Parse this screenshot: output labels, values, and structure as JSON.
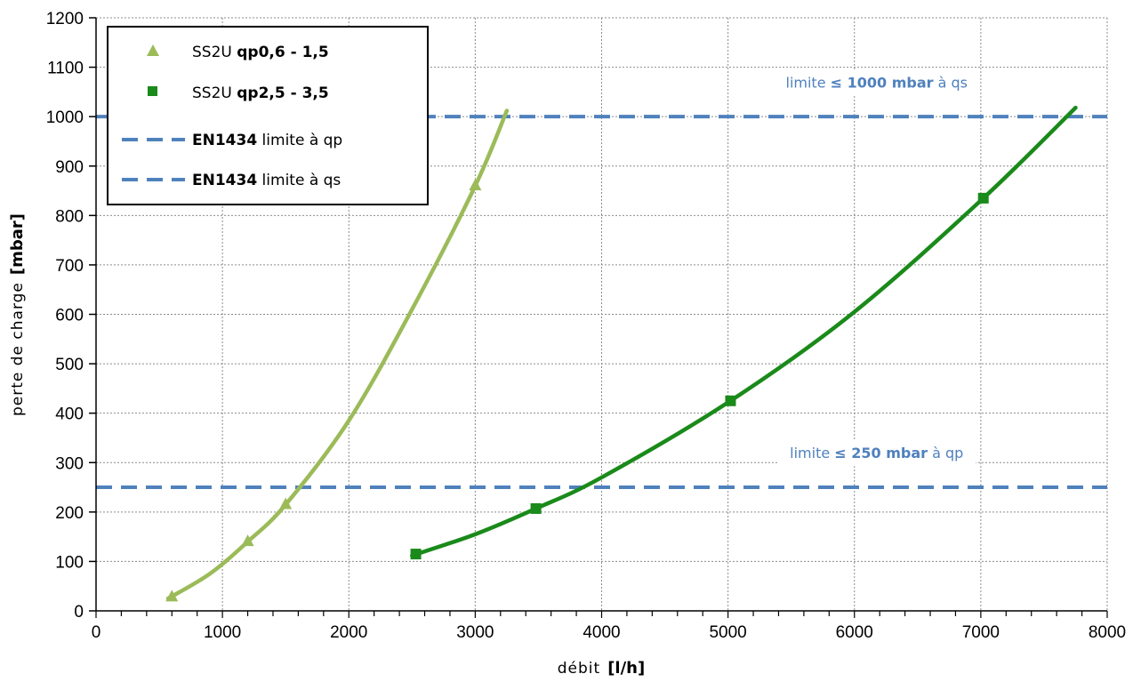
{
  "chart_data": {
    "type": "line",
    "title": "",
    "xlabel": "débit",
    "xlabel_unit": "[l/h]",
    "ylabel": "perte de charge",
    "ylabel_unit": "[mbar]",
    "xlim": [
      0,
      8000
    ],
    "ylim": [
      0,
      1200
    ],
    "x_ticks": [
      0,
      1000,
      2000,
      3000,
      4000,
      5000,
      6000,
      7000,
      8000
    ],
    "y_ticks": [
      0,
      100,
      200,
      300,
      400,
      500,
      600,
      700,
      800,
      900,
      1000,
      1100,
      1200
    ],
    "grid": true,
    "legend_position": "top-left",
    "series": [
      {
        "name_prefix": "SS2U ",
        "name_bold": "qp0,6 - 1,5",
        "color": "#9bbb59",
        "marker": "triangle",
        "markers": [
          {
            "x": 600,
            "y": 28
          },
          {
            "x": 1200,
            "y": 140
          },
          {
            "x": 1500,
            "y": 215
          },
          {
            "x": 3000,
            "y": 860
          }
        ],
        "curve": [
          {
            "x": 570,
            "y": 25
          },
          {
            "x": 900,
            "y": 75
          },
          {
            "x": 1200,
            "y": 140
          },
          {
            "x": 1500,
            "y": 215
          },
          {
            "x": 2000,
            "y": 385
          },
          {
            "x": 2500,
            "y": 610
          },
          {
            "x": 3000,
            "y": 860
          },
          {
            "x": 3250,
            "y": 1012
          }
        ]
      },
      {
        "name_prefix": "SS2U ",
        "name_bold": "qp2,5 - 3,5",
        "color": "#1a8a1a",
        "marker": "square",
        "markers": [
          {
            "x": 2530,
            "y": 115
          },
          {
            "x": 3480,
            "y": 207
          },
          {
            "x": 5020,
            "y": 425
          },
          {
            "x": 7020,
            "y": 835
          }
        ],
        "curve": [
          {
            "x": 2500,
            "y": 112
          },
          {
            "x": 3000,
            "y": 155
          },
          {
            "x": 3480,
            "y": 207
          },
          {
            "x": 4000,
            "y": 270
          },
          {
            "x": 5020,
            "y": 425
          },
          {
            "x": 6000,
            "y": 605
          },
          {
            "x": 7020,
            "y": 835
          },
          {
            "x": 7750,
            "y": 1018
          }
        ]
      }
    ],
    "reference_lines": [
      {
        "name_bold": "EN1434",
        "name_rest": " limite à qp",
        "y": 250,
        "color": "#4f81bd",
        "style": "dashed"
      },
      {
        "name_bold": "EN1434",
        "name_rest": " limite à qs",
        "y": 1000,
        "color": "#4f81bd",
        "style": "dashed"
      }
    ],
    "annotations": [
      {
        "pre": "limite ",
        "bold": "≤ 1000 mbar",
        "post": " à qs",
        "x": 6000,
        "y": 1070
      },
      {
        "pre": "limite ",
        "bold": "≤ 250 mbar",
        "post": " à qp",
        "x": 6000,
        "y": 320
      }
    ]
  }
}
